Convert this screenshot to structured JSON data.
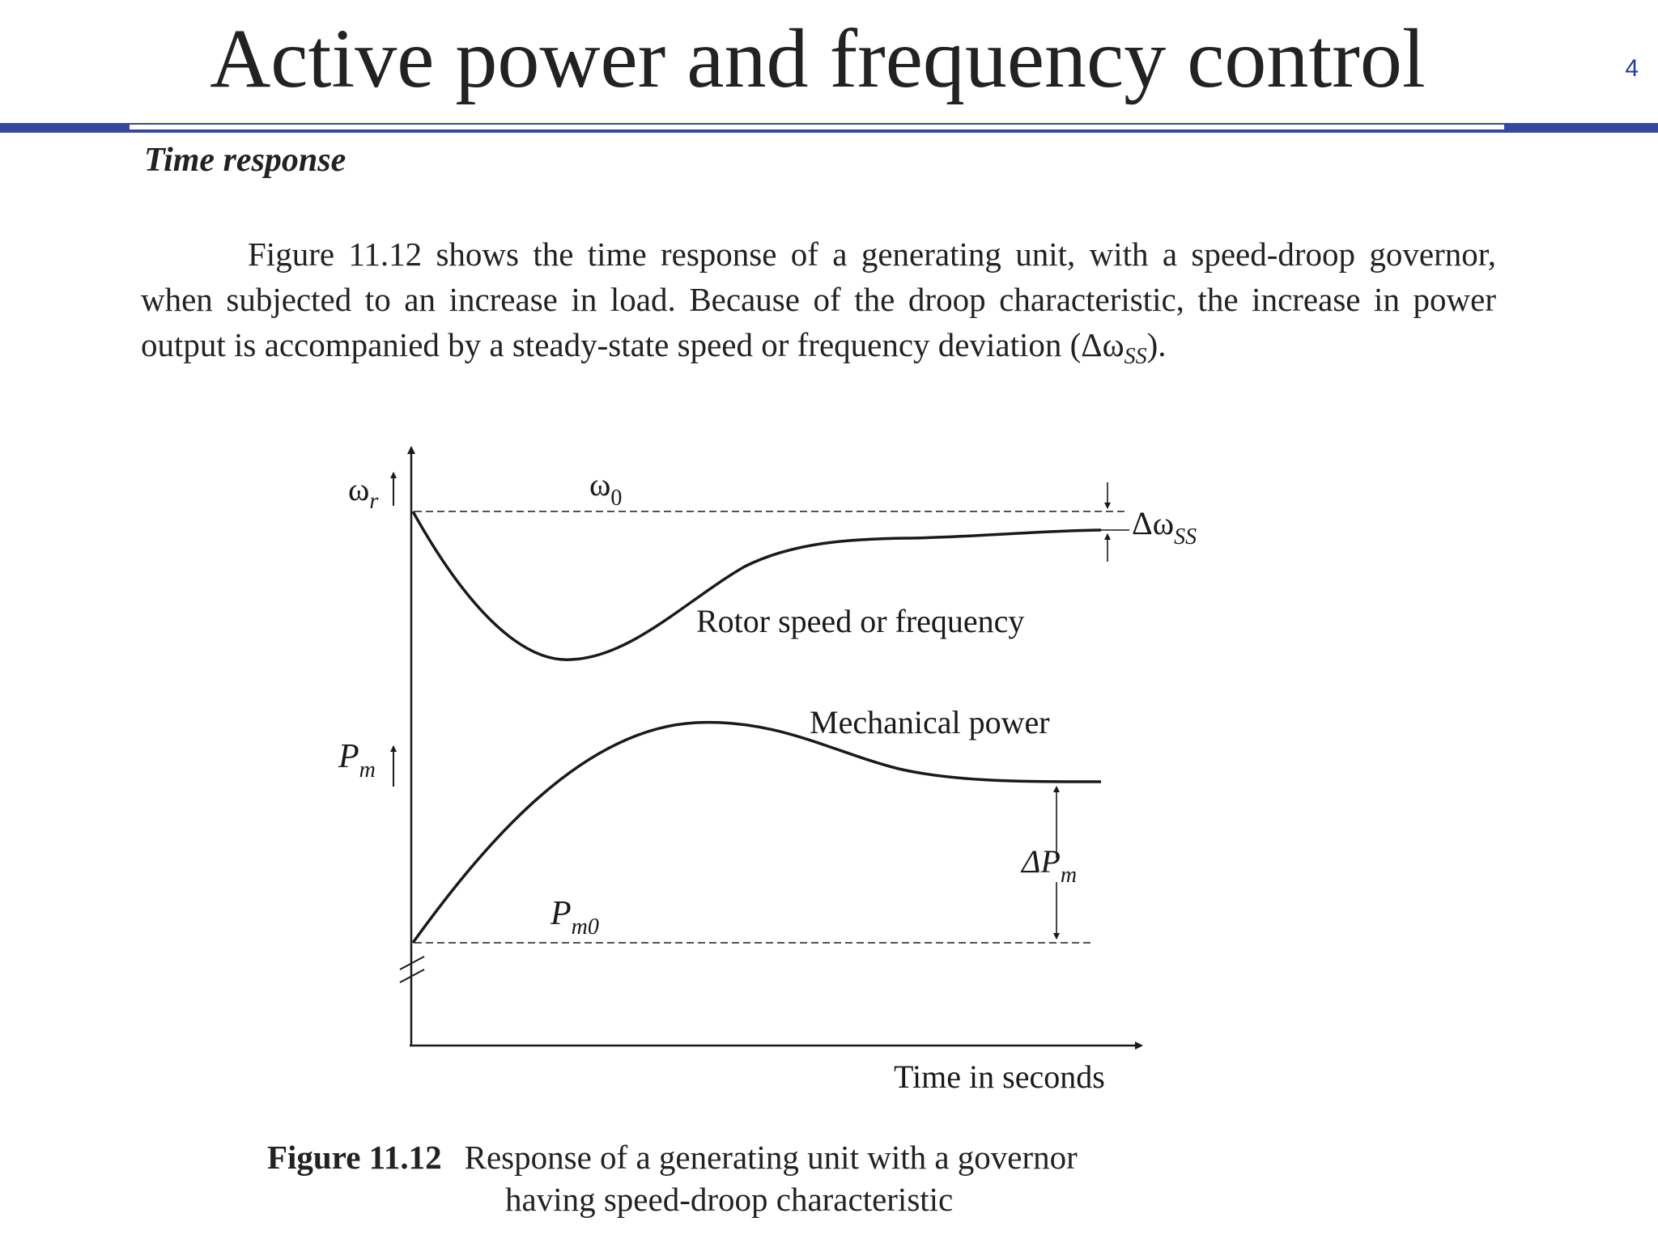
{
  "slide": {
    "title": "Active power and frequency control",
    "number": "4"
  },
  "section_heading": "Time response",
  "paragraph": {
    "text_before": "Figure 11.12 shows the time response of a generating unit, with a speed-droop governor, when subjected to an increase in load. Because of the droop characteristic, the increase in power output is accompanied by a steady-state speed or frequency deviation (Δω",
    "subscript": "SS",
    "text_after": ")."
  },
  "figure": {
    "labels": {
      "omega_r_main": "ω",
      "omega_r_sub": "r",
      "omega_0_main": "ω",
      "omega_0_sub": "0",
      "delta_omega_main": "Δω",
      "delta_omega_sub": "SS",
      "rotor_curve": "Rotor speed or frequency",
      "mech_curve": "Mechanical power",
      "pm_main": "P",
      "pm_sub": "m",
      "pm0_main": "P",
      "pm0_sub": "m0",
      "delta_pm_main": "ΔP",
      "delta_pm_sub": "m",
      "time_axis": "Time in seconds"
    },
    "caption": {
      "number": "Figure 11.12",
      "line1": "Response of a generating unit with a governor",
      "line2": "having speed-droop characteristic"
    }
  }
}
